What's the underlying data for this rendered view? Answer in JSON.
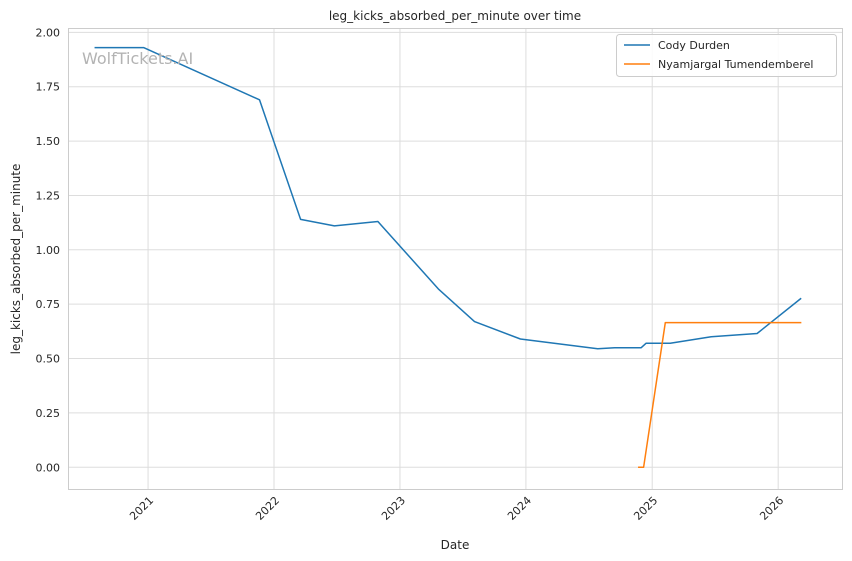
{
  "chart_data": {
    "type": "line",
    "title": "leg_kicks_absorbed_per_minute over time",
    "xlabel": "Date",
    "ylabel": "leg_kicks_absorbed_per_minute",
    "watermark": "WolfTickets.AI",
    "xlim": [
      "2020-05-14",
      "2026-07-05"
    ],
    "ylim": [
      -0.1,
      2.02
    ],
    "x_ticks": [
      "2021-01-01",
      "2022-01-01",
      "2023-01-01",
      "2024-01-01",
      "2025-01-01",
      "2026-01-01"
    ],
    "x_tick_labels": [
      "2021",
      "2022",
      "2023",
      "2024",
      "2025",
      "2026"
    ],
    "y_ticks": [
      0.0,
      0.25,
      0.5,
      0.75,
      1.0,
      1.25,
      1.5,
      1.75,
      2.0
    ],
    "y_tick_labels": [
      "0.00",
      "0.25",
      "0.50",
      "0.75",
      "1.00",
      "1.25",
      "1.50",
      "1.75",
      "2.00"
    ],
    "grid": true,
    "legend_position": "top-right",
    "series": [
      {
        "name": "Cody Durden",
        "color": "#1f77b4",
        "points": [
          [
            "2020-08-01",
            1.93
          ],
          [
            "2020-12-19",
            1.93
          ],
          [
            "2021-11-20",
            1.69
          ],
          [
            "2022-03-19",
            1.14
          ],
          [
            "2022-06-25",
            1.11
          ],
          [
            "2022-10-29",
            1.13
          ],
          [
            "2023-04-22",
            0.82
          ],
          [
            "2023-08-05",
            0.67
          ],
          [
            "2023-12-16",
            0.59
          ],
          [
            "2024-07-27",
            0.545
          ],
          [
            "2024-09-14",
            0.55
          ],
          [
            "2024-11-30",
            0.55
          ],
          [
            "2024-12-14",
            0.57
          ],
          [
            "2025-02-22",
            0.57
          ],
          [
            "2025-06-21",
            0.6
          ],
          [
            "2025-11-01",
            0.615
          ],
          [
            "2026-03-07",
            0.775
          ]
        ]
      },
      {
        "name": "Nyamjargal Tumendemberel",
        "color": "#ff7f0e",
        "points": [
          [
            "2024-11-23",
            0.0
          ],
          [
            "2024-12-07",
            0.0
          ],
          [
            "2025-02-08",
            0.665
          ],
          [
            "2026-03-07",
            0.665
          ]
        ]
      }
    ]
  }
}
